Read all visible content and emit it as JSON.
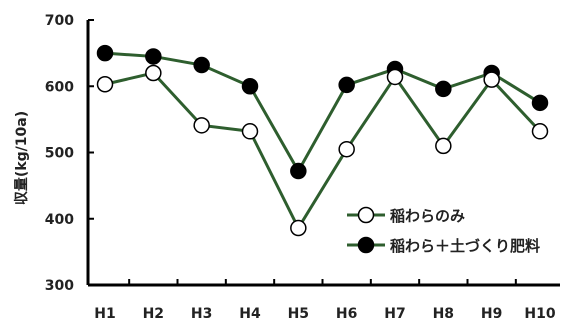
{
  "chart_data": {
    "type": "line",
    "categories": [
      "H1",
      "H2",
      "H3",
      "H4",
      "H5",
      "H6",
      "H7",
      "H8",
      "H9",
      "H10"
    ],
    "ylabel": "収量(kg/10a)",
    "ylim": [
      300,
      700
    ],
    "yticks": [
      "300",
      "400",
      "500",
      "600",
      "700"
    ],
    "grid": false,
    "legend_position": "bottom-right",
    "series": [
      {
        "name": "稲わらのみ",
        "marker": "open-circle",
        "color": "#2e5e2e",
        "values": [
          603,
          620,
          541,
          532,
          386,
          505,
          614,
          510,
          610,
          532
        ]
      },
      {
        "name": "稲わら＋土づくり肥料",
        "marker": "filled-circle",
        "color": "#2e5e2e",
        "values": [
          650,
          645,
          632,
          600,
          472,
          602,
          626,
          596,
          620,
          575
        ]
      }
    ]
  }
}
